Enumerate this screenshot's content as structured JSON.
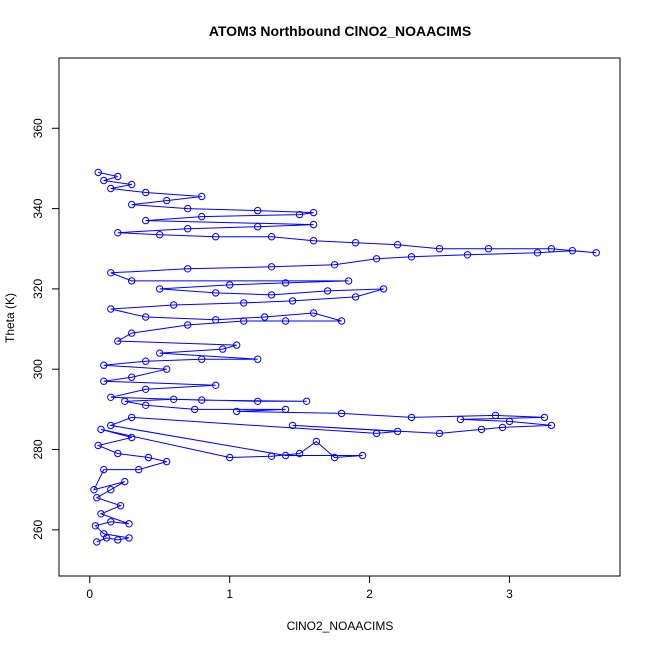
{
  "chart_data": {
    "type": "scatter",
    "title": "ATOM3 Northbound ClNO2_NOAACIMS",
    "xlabel": "ClNO2_NOAACIMS",
    "ylabel": "Theta (K)",
    "xlim": [
      -0.22,
      3.79
    ],
    "ylim": [
      248.5,
      377.5
    ],
    "xticks": [
      0,
      1,
      2,
      3
    ],
    "yticks": [
      260,
      280,
      300,
      320,
      340,
      360
    ],
    "grid": false,
    "legend": "none",
    "colors": {
      "series": "#0000ff"
    },
    "series": [
      {
        "mode": "line-and-points",
        "points": [
          [
            0.05,
            257
          ],
          [
            0.12,
            258
          ],
          [
            0.2,
            257.5
          ],
          [
            0.28,
            258
          ],
          [
            0.1,
            259
          ],
          [
            0.04,
            261
          ],
          [
            0.15,
            262
          ],
          [
            0.28,
            261.5
          ],
          [
            0.08,
            264
          ],
          [
            0.22,
            266
          ],
          [
            0.05,
            268
          ],
          [
            0.15,
            270
          ],
          [
            0.25,
            272
          ],
          [
            0.03,
            270
          ],
          [
            0.1,
            275
          ],
          [
            0.35,
            275
          ],
          [
            0.55,
            277
          ],
          [
            0.42,
            278
          ],
          [
            0.2,
            279
          ],
          [
            0.06,
            281
          ],
          [
            0.3,
            283
          ],
          [
            0.08,
            285
          ],
          [
            1.0,
            278
          ],
          [
            1.3,
            278.3
          ],
          [
            1.5,
            279
          ],
          [
            1.62,
            282
          ],
          [
            1.75,
            278
          ],
          [
            1.95,
            278.5
          ],
          [
            1.4,
            278.5
          ],
          [
            0.15,
            286
          ],
          [
            0.3,
            288
          ],
          [
            2.05,
            284
          ],
          [
            2.2,
            284.5
          ],
          [
            1.45,
            286
          ],
          [
            2.5,
            284
          ],
          [
            2.8,
            285
          ],
          [
            2.95,
            285.5
          ],
          [
            3.3,
            286
          ],
          [
            3.0,
            287
          ],
          [
            2.65,
            287.5
          ],
          [
            3.25,
            288
          ],
          [
            2.9,
            288.5
          ],
          [
            2.3,
            288
          ],
          [
            1.8,
            289
          ],
          [
            1.05,
            289.5
          ],
          [
            1.4,
            290
          ],
          [
            0.75,
            290
          ],
          [
            0.4,
            291
          ],
          [
            0.25,
            292
          ],
          [
            0.6,
            292.5
          ],
          [
            1.2,
            292
          ],
          [
            1.55,
            292
          ],
          [
            0.8,
            292.3
          ],
          [
            0.15,
            293
          ],
          [
            0.4,
            295
          ],
          [
            0.9,
            296
          ],
          [
            0.1,
            297
          ],
          [
            0.3,
            298
          ],
          [
            0.55,
            300
          ],
          [
            0.1,
            301
          ],
          [
            0.4,
            302
          ],
          [
            0.8,
            302.5
          ],
          [
            1.2,
            302.5
          ],
          [
            0.5,
            304
          ],
          [
            0.95,
            305
          ],
          [
            1.05,
            306
          ],
          [
            0.2,
            307
          ],
          [
            0.3,
            309
          ],
          [
            0.7,
            311
          ],
          [
            1.1,
            312
          ],
          [
            1.4,
            312
          ],
          [
            1.8,
            312
          ],
          [
            1.6,
            314
          ],
          [
            1.25,
            313
          ],
          [
            0.9,
            312.3
          ],
          [
            0.4,
            313
          ],
          [
            0.15,
            315
          ],
          [
            0.6,
            316
          ],
          [
            1.1,
            316.5
          ],
          [
            1.45,
            317
          ],
          [
            1.9,
            318
          ],
          [
            2.1,
            320
          ],
          [
            1.7,
            319.5
          ],
          [
            1.3,
            318.5
          ],
          [
            0.9,
            319
          ],
          [
            0.5,
            320
          ],
          [
            1.0,
            321
          ],
          [
            1.4,
            321.5
          ],
          [
            1.85,
            322
          ],
          [
            0.3,
            322
          ],
          [
            0.15,
            324
          ],
          [
            0.7,
            325
          ],
          [
            1.3,
            325.5
          ],
          [
            1.75,
            326
          ],
          [
            2.05,
            327.5
          ],
          [
            2.3,
            328
          ],
          [
            2.7,
            328.5
          ],
          [
            3.2,
            329
          ],
          [
            3.45,
            329.5
          ],
          [
            3.62,
            329
          ],
          [
            3.3,
            330
          ],
          [
            2.85,
            330
          ],
          [
            2.5,
            330
          ],
          [
            2.2,
            331
          ],
          [
            1.9,
            331.5
          ],
          [
            1.6,
            332
          ],
          [
            1.3,
            333
          ],
          [
            0.9,
            333
          ],
          [
            0.5,
            333.5
          ],
          [
            0.2,
            334
          ],
          [
            0.7,
            335
          ],
          [
            1.2,
            335.5
          ],
          [
            1.6,
            336
          ],
          [
            0.4,
            337
          ],
          [
            0.8,
            338
          ],
          [
            1.5,
            338.5
          ],
          [
            1.6,
            339
          ],
          [
            1.2,
            339.5
          ],
          [
            0.7,
            340
          ],
          [
            0.3,
            341
          ],
          [
            0.55,
            342
          ],
          [
            0.8,
            343
          ],
          [
            0.4,
            344
          ],
          [
            0.15,
            345
          ],
          [
            0.3,
            346
          ],
          [
            0.1,
            347
          ],
          [
            0.2,
            348
          ],
          [
            0.06,
            349
          ]
        ]
      }
    ]
  }
}
